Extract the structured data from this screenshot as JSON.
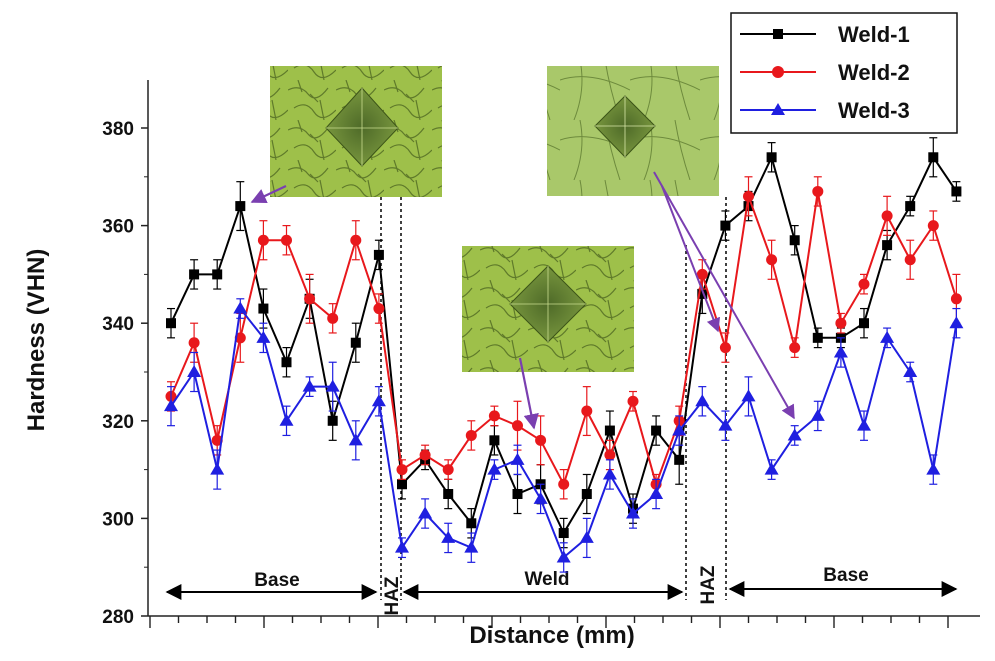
{
  "chart_data": {
    "type": "line",
    "title": "",
    "xlabel": "Distance (mm)",
    "ylabel": "Hardness (VHN)",
    "ylim": [
      280,
      390
    ],
    "yticks": [
      280,
      300,
      320,
      340,
      360,
      380
    ],
    "grid": false,
    "legend_position": "top-right",
    "series": [
      {
        "name": "Weld-1",
        "color": "#000000",
        "marker": "square",
        "values": [
          340,
          350,
          350,
          364,
          343,
          332,
          345,
          320,
          336,
          354,
          307,
          312,
          305,
          299,
          316,
          305,
          307,
          297,
          305,
          318,
          302,
          318,
          312,
          346,
          360,
          364,
          374,
          357,
          337,
          337,
          340,
          356,
          364,
          374,
          367
        ],
        "errors": [
          3,
          3,
          3,
          5,
          4,
          3,
          4,
          4,
          4,
          3,
          3,
          2,
          3,
          3,
          3,
          4,
          4,
          3,
          4,
          4,
          3,
          3,
          5,
          4,
          3,
          3,
          3,
          3,
          2,
          2,
          3,
          3,
          2,
          4,
          2
        ]
      },
      {
        "name": "Weld-2",
        "color": "#e8181c",
        "marker": "circle",
        "values": [
          325,
          336,
          316,
          337,
          357,
          357,
          345,
          341,
          357,
          343,
          310,
          313,
          310,
          317,
          321,
          319,
          316,
          307,
          322,
          313,
          324,
          307,
          320,
          350,
          335,
          366,
          353,
          335,
          367,
          340,
          348,
          362,
          353,
          360,
          345
        ],
        "errors": [
          3,
          4,
          3,
          5,
          4,
          3,
          5,
          3,
          4,
          3,
          2,
          2,
          2,
          3,
          2,
          5,
          5,
          3,
          5,
          3,
          2,
          2,
          3,
          3,
          3,
          4,
          4,
          2,
          3,
          2,
          2,
          4,
          4,
          3,
          5
        ]
      },
      {
        "name": "Weld-3",
        "color": "#1f1fe0",
        "marker": "triangle",
        "values": [
          323,
          330,
          310,
          343,
          337,
          320,
          327,
          327,
          316,
          324,
          294,
          301,
          296,
          294,
          310,
          312,
          304,
          292,
          296,
          309,
          301,
          305,
          318,
          324,
          319,
          325,
          310,
          317,
          321,
          334,
          319,
          337,
          330,
          310,
          340
        ],
        "errors": [
          4,
          4,
          4,
          2,
          3,
          3,
          2,
          5,
          4,
          3,
          2,
          3,
          3,
          3,
          2,
          3,
          3,
          3,
          4,
          3,
          3,
          3,
          3,
          3,
          3,
          4,
          2,
          2,
          3,
          3,
          3,
          2,
          2,
          3,
          3
        ]
      }
    ],
    "regions": [
      {
        "label": "Base",
        "kind": "horizontal"
      },
      {
        "label": "HAZ",
        "kind": "vertical"
      },
      {
        "label": "Weld",
        "kind": "horizontal"
      },
      {
        "label": "HAZ",
        "kind": "vertical"
      },
      {
        "label": "Base",
        "kind": "horizontal"
      }
    ],
    "insets": [
      "base-metal-micrograph",
      "weld-metal-micrograph",
      "base-metal-micrograph"
    ]
  }
}
